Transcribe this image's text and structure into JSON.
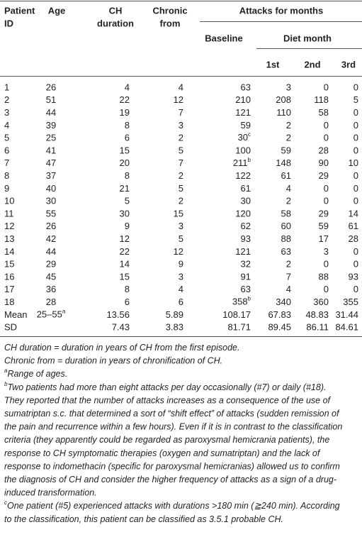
{
  "table": {
    "header": {
      "patient_id": [
        "Patient",
        "ID"
      ],
      "age": "Age",
      "ch_duration": [
        "CH",
        "duration"
      ],
      "chronic_from": [
        "Chronic",
        "from"
      ],
      "attacks": "Attacks for months",
      "baseline": "Baseline",
      "diet_month": "Diet month",
      "months": [
        "1st",
        "2nd",
        "3rd"
      ]
    },
    "rows": [
      [
        1,
        26,
        4,
        4,
        63,
        3,
        0,
        0
      ],
      [
        2,
        51,
        22,
        12,
        210,
        208,
        118,
        5
      ],
      [
        3,
        44,
        19,
        7,
        121,
        110,
        58,
        0
      ],
      [
        4,
        39,
        8,
        3,
        59,
        2,
        0,
        0
      ],
      [
        5,
        25,
        6,
        2,
        {
          "value": 30,
          "note": "c"
        },
        2,
        0,
        0
      ],
      [
        6,
        41,
        15,
        5,
        100,
        59,
        28,
        0
      ],
      [
        7,
        47,
        20,
        7,
        {
          "value": 211,
          "note": "b"
        },
        148,
        90,
        10
      ],
      [
        8,
        37,
        8,
        2,
        122,
        61,
        29,
        0
      ],
      [
        9,
        40,
        21,
        5,
        61,
        4,
        0,
        0
      ],
      [
        10,
        30,
        5,
        2,
        30,
        2,
        0,
        0
      ],
      [
        11,
        55,
        30,
        15,
        120,
        58,
        29,
        14
      ],
      [
        12,
        26,
        9,
        3,
        62,
        60,
        59,
        61
      ],
      [
        13,
        42,
        12,
        5,
        93,
        88,
        17,
        28
      ],
      [
        14,
        44,
        22,
        12,
        121,
        63,
        3,
        0
      ],
      [
        15,
        29,
        14,
        9,
        32,
        2,
        0,
        0
      ],
      [
        16,
        45,
        15,
        3,
        91,
        7,
        88,
        93
      ],
      [
        17,
        36,
        8,
        4,
        63,
        4,
        0,
        0
      ],
      [
        18,
        28,
        6,
        6,
        {
          "value": 358,
          "note": "b"
        },
        340,
        360,
        355
      ],
      [
        "Mean",
        {
          "value": "25–55",
          "note": "a"
        },
        13.56,
        5.89,
        108.17,
        67.83,
        48.83,
        31.44
      ],
      [
        "SD",
        null,
        7.43,
        3.83,
        81.71,
        89.45,
        86.11,
        84.61
      ]
    ],
    "footnotes": [
      {
        "lines": [
          "CH duration = duration in years of CH from the first episode."
        ]
      },
      {
        "lines": [
          "Chronic from = duration in years of chronification of CH."
        ]
      },
      {
        "marker": "a",
        "lines": [
          "Range of ages."
        ]
      },
      {
        "marker": "b",
        "lines": [
          "Two patients had more than eight attacks per day occasionally (#7) or daily (#18).",
          "They reported that the number of attacks increases as a consequence of the use of",
          "sumatriptan s.c. that determined a sort of “shift effect” of attacks (sudden remission of",
          "the pain and recurrence within a few hours). Even if it is in contrast to the classification",
          "criteria (they apparently could be regarded as paroxysmal hemicrania patients), the",
          "response to CH symptomatic therapies (oxygen and sumatriptan) and the lack of",
          "response to indomethacin (specific for paroxysmal hemicranias) allowed us to confirm",
          "the diagnosis of CH and consider the higher frequency of attacks as a sign of a drug-",
          "induced transformation."
        ]
      },
      {
        "marker": "c",
        "lines": [
          "One patient (#5) experienced attacks with durations >180 min (≧240 min). According",
          "to the classification, this patient can be classified as 3.5.1 probable CH."
        ]
      }
    ]
  }
}
